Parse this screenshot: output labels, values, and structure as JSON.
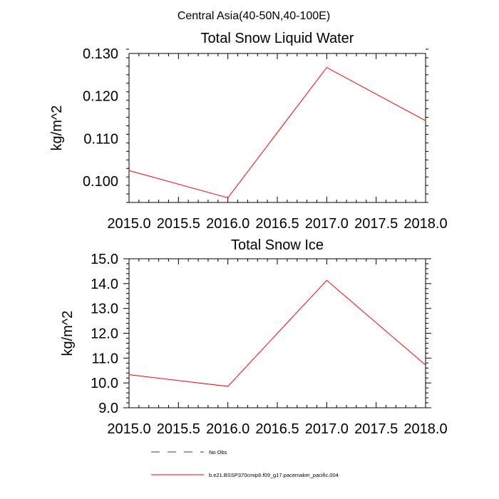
{
  "figure": {
    "suptitle": "Central Asia(40-50N,40-100E)"
  },
  "chart_data": [
    {
      "type": "line",
      "title": "Total Snow Liquid Water",
      "xlabel": "",
      "ylabel": "kg/m^2",
      "xlim": [
        2015.0,
        2018.0
      ],
      "ylim": [
        0.095,
        0.13
      ],
      "xticks": [
        2015.0,
        2015.5,
        2016.0,
        2016.5,
        2017.0,
        2017.5,
        2018.0
      ],
      "xtick_labels": [
        "2015.0",
        "2015.5",
        "2016.0",
        "2016.5",
        "2017.0",
        "2017.5",
        "2018.0"
      ],
      "yticks": [
        0.1,
        0.11,
        0.12,
        0.13
      ],
      "ytick_labels": [
        "0.100",
        "0.110",
        "0.120",
        "0.130"
      ],
      "grid": false,
      "series": [
        {
          "name": "b.e21.BSSP370cmip6.f09_g17.pacemaker_pacific.004",
          "color": "#ff0000",
          "x": [
            2015.0,
            2016.0,
            2017.0,
            2018.0
          ],
          "y": [
            0.1025,
            0.0961,
            0.1267,
            0.1142
          ]
        }
      ]
    },
    {
      "type": "line",
      "title": "Total Snow Ice",
      "xlabel": "",
      "ylabel": "kg/m^2",
      "xlim": [
        2015.0,
        2018.0
      ],
      "ylim": [
        9.0,
        15.0
      ],
      "xticks": [
        2015.0,
        2015.5,
        2016.0,
        2016.5,
        2017.0,
        2017.5,
        2018.0
      ],
      "xtick_labels": [
        "2015.0",
        "2015.5",
        "2016.0",
        "2016.5",
        "2017.0",
        "2017.5",
        "2018.0"
      ],
      "yticks": [
        9.0,
        10.0,
        11.0,
        12.0,
        13.0,
        14.0,
        15.0
      ],
      "ytick_labels": [
        "9.0",
        "10.0",
        "11.0",
        "12.0",
        "13.0",
        "14.0",
        "15.0"
      ],
      "grid": false,
      "series": [
        {
          "name": "b.e21.BSSP370cmip6.f09_g17.pacemaker_pacific.004",
          "color": "#ff0000",
          "x": [
            2015.0,
            2016.0,
            2017.0,
            2018.0
          ],
          "y": [
            10.33,
            9.86,
            14.13,
            10.72
          ]
        }
      ]
    }
  ],
  "legend": {
    "placement": "bottom",
    "items": [
      {
        "label": "No Obs",
        "color": "#3333aa",
        "style": "dashed"
      },
      {
        "label": "b.e21.BSSP370cmip6.f09_g17.pacemaker_pacific.004",
        "color": "#ff0000",
        "style": "solid"
      }
    ]
  }
}
